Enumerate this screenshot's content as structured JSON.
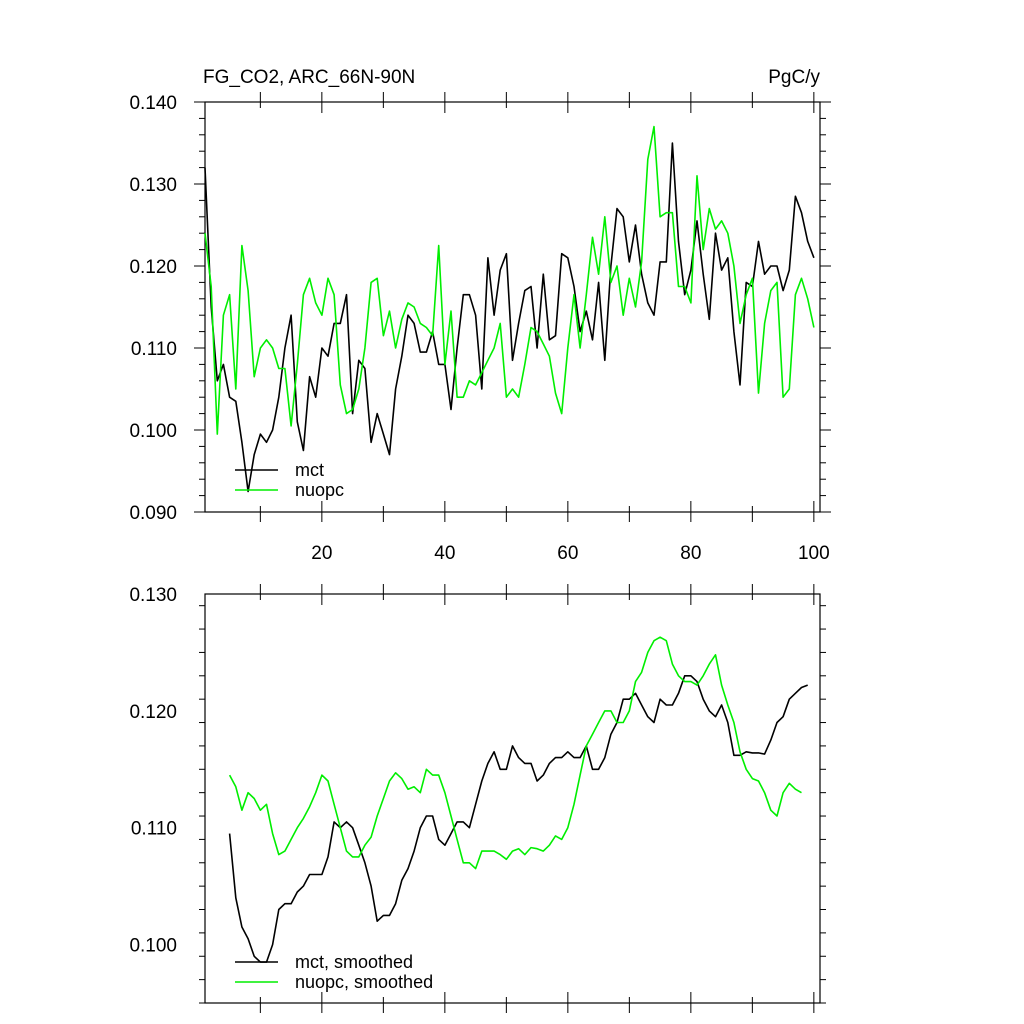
{
  "title": "FG_CO2, ARC_66N-90N",
  "units": "PgC/y",
  "colors": {
    "mct": "#000000",
    "nuopc": "#00ee00"
  },
  "chart_data": [
    {
      "type": "line",
      "panel": "top",
      "xlim": [
        1,
        101
      ],
      "ylim": [
        0.09,
        0.14
      ],
      "x_ticks": [
        20,
        40,
        60,
        80,
        100
      ],
      "x_tick_labels": [
        "20",
        "40",
        "60",
        "80",
        "100"
      ],
      "y_ticks": [
        0.09,
        0.1,
        0.11,
        0.12,
        0.13,
        0.14
      ],
      "y_tick_labels": [
        "0.090",
        "0.100",
        "0.110",
        "0.120",
        "0.130",
        "0.140"
      ],
      "legend_position": "bottom-left",
      "series": [
        {
          "name": "mct",
          "color": "#000000",
          "x_start": 1,
          "values": [
            0.132,
            0.115,
            0.106,
            0.108,
            0.104,
            0.1035,
            0.0985,
            0.0925,
            0.097,
            0.0995,
            0.0985,
            0.1,
            0.104,
            0.11,
            0.114,
            0.101,
            0.0975,
            0.1065,
            0.104,
            0.11,
            0.109,
            0.113,
            0.113,
            0.1165,
            0.102,
            0.1085,
            0.1075,
            0.0985,
            0.102,
            0.0995,
            0.097,
            0.105,
            0.109,
            0.114,
            0.113,
            0.1095,
            0.1095,
            0.112,
            0.108,
            0.108,
            0.1025,
            0.11,
            0.1165,
            0.1165,
            0.114,
            0.105,
            0.121,
            0.114,
            0.1195,
            0.1215,
            0.1085,
            0.113,
            0.117,
            0.1175,
            0.11,
            0.119,
            0.111,
            0.1115,
            0.1215,
            0.121,
            0.1175,
            0.112,
            0.1145,
            0.111,
            0.118,
            0.1085,
            0.12,
            0.127,
            0.126,
            0.1205,
            0.125,
            0.119,
            0.1155,
            0.114,
            0.1205,
            0.1205,
            0.135,
            0.123,
            0.1165,
            0.1195,
            0.1255,
            0.119,
            0.1135,
            0.124,
            0.1195,
            0.121,
            0.112,
            0.1055,
            0.118,
            0.1175,
            0.123,
            0.119,
            0.12,
            0.12,
            0.117,
            0.1195,
            0.1285,
            0.1265,
            0.123,
            0.121
          ]
        },
        {
          "name": "nuopc",
          "color": "#00ee00",
          "x_start": 1,
          "values": [
            0.124,
            0.1175,
            0.0995,
            0.114,
            0.1165,
            0.105,
            0.1225,
            0.117,
            0.1065,
            0.11,
            0.111,
            0.11,
            0.1075,
            0.1075,
            0.1005,
            0.108,
            0.1165,
            0.1185,
            0.1155,
            0.114,
            0.1185,
            0.1165,
            0.1055,
            0.102,
            0.1025,
            0.105,
            0.11,
            0.118,
            0.1185,
            0.1115,
            0.1145,
            0.11,
            0.1135,
            0.1155,
            0.115,
            0.113,
            0.1125,
            0.1115,
            0.1225,
            0.108,
            0.1145,
            0.104,
            0.104,
            0.106,
            0.1055,
            0.107,
            0.1085,
            0.11,
            0.113,
            0.104,
            0.105,
            0.104,
            0.108,
            0.1125,
            0.112,
            0.1105,
            0.109,
            0.1045,
            0.102,
            0.11,
            0.1165,
            0.11,
            0.1165,
            0.1235,
            0.119,
            0.126,
            0.118,
            0.12,
            0.114,
            0.1185,
            0.115,
            0.1205,
            0.133,
            0.137,
            0.126,
            0.1265,
            0.1265,
            0.1175,
            0.1175,
            0.1155,
            0.131,
            0.122,
            0.127,
            0.1245,
            0.1255,
            0.124,
            0.12,
            0.113,
            0.1165,
            0.1185,
            0.1045,
            0.113,
            0.117,
            0.118,
            0.104,
            0.105,
            0.1165,
            0.1185,
            0.116,
            0.1125
          ]
        }
      ]
    },
    {
      "type": "line",
      "panel": "bottom",
      "xlim": [
        1,
        101
      ],
      "ylim": [
        0.095,
        0.13
      ],
      "y_ticks": [
        0.1,
        0.11,
        0.12,
        0.13
      ],
      "y_tick_labels": [
        "0.100",
        "0.110",
        "0.120",
        "0.130"
      ],
      "legend_position": "bottom-left",
      "series": [
        {
          "name": "mct, smoothed",
          "color": "#000000",
          "x_start": 5,
          "values": [
            0.1095,
            0.104,
            0.1015,
            0.1005,
            0.099,
            0.0985,
            0.0985,
            0.1,
            0.103,
            0.1035,
            0.1035,
            0.1045,
            0.105,
            0.106,
            0.106,
            0.106,
            0.1075,
            0.1105,
            0.11,
            0.1105,
            0.11,
            0.1085,
            0.107,
            0.105,
            0.102,
            0.1025,
            0.1025,
            0.1035,
            0.1055,
            0.1065,
            0.108,
            0.11,
            0.111,
            0.111,
            0.109,
            0.1085,
            0.1095,
            0.1105,
            0.1105,
            0.11,
            0.112,
            0.114,
            0.1155,
            0.1165,
            0.115,
            0.115,
            0.117,
            0.116,
            0.1155,
            0.1155,
            0.114,
            0.1145,
            0.1155,
            0.116,
            0.116,
            0.1165,
            0.116,
            0.116,
            0.117,
            0.115,
            0.115,
            0.116,
            0.118,
            0.119,
            0.121,
            0.121,
            0.1215,
            0.1205,
            0.1195,
            0.119,
            0.121,
            0.1205,
            0.1205,
            0.1215,
            0.123,
            0.123,
            0.1225,
            0.121,
            0.12,
            0.1195,
            0.1205,
            0.119,
            0.1162,
            0.1162,
            0.1165,
            0.1164,
            0.1164,
            0.1163,
            0.1175,
            0.119,
            0.1195,
            0.121,
            0.1215,
            0.122,
            0.1222
          ]
        },
        {
          "name": "nuopc, smoothed",
          "color": "#00ee00",
          "x_start": 5,
          "values": [
            0.1145,
            0.1135,
            0.1115,
            0.113,
            0.1125,
            0.1115,
            0.112,
            0.1095,
            0.1077,
            0.108,
            0.109,
            0.11,
            0.1108,
            0.1118,
            0.113,
            0.1145,
            0.114,
            0.112,
            0.11,
            0.108,
            0.1075,
            0.1075,
            0.1085,
            0.1092,
            0.111,
            0.1125,
            0.114,
            0.1147,
            0.1142,
            0.1133,
            0.1135,
            0.113,
            0.115,
            0.1145,
            0.1145,
            0.113,
            0.111,
            0.109,
            0.107,
            0.107,
            0.1065,
            0.108,
            0.108,
            0.108,
            0.1077,
            0.1073,
            0.108,
            0.1082,
            0.1077,
            0.1083,
            0.1082,
            0.108,
            0.1085,
            0.1093,
            0.109,
            0.11,
            0.112,
            0.1145,
            0.117,
            0.118,
            0.119,
            0.12,
            0.12,
            0.119,
            0.119,
            0.12,
            0.1225,
            0.1233,
            0.125,
            0.126,
            0.1263,
            0.126,
            0.124,
            0.123,
            0.1225,
            0.1225,
            0.1222,
            0.123,
            0.124,
            0.1248,
            0.1222,
            0.1205,
            0.119,
            0.1165,
            0.115,
            0.1142,
            0.114,
            0.113,
            0.1115,
            0.111,
            0.113,
            0.1138,
            0.1133,
            0.113
          ]
        }
      ]
    }
  ]
}
